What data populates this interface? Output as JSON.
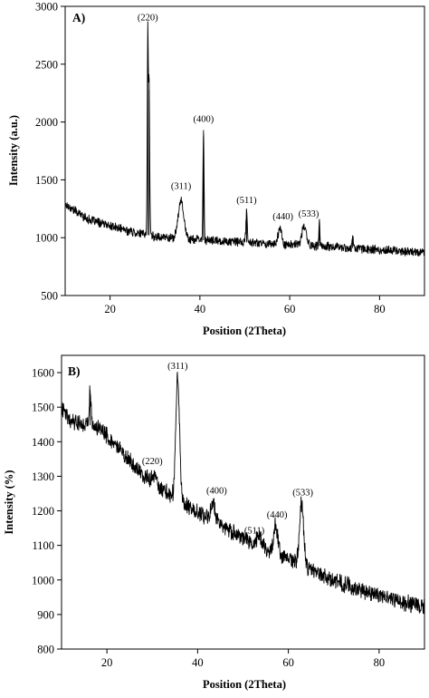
{
  "chart_data": [
    {
      "type": "line",
      "panel_label": "A)",
      "xlabel": "Position (2Theta)",
      "ylabel": "Intensity (a.u.)",
      "xlim": [
        10,
        90
      ],
      "ylim": [
        500,
        3000
      ],
      "xticks": [
        20,
        40,
        60,
        80
      ],
      "yticks": [
        500,
        1000,
        1500,
        2000,
        2500,
        3000
      ],
      "grid": false,
      "baseline": [
        [
          10,
          1290
        ],
        [
          15,
          1160
        ],
        [
          20,
          1100
        ],
        [
          25,
          1050
        ],
        [
          30,
          1010
        ],
        [
          40,
          980
        ],
        [
          50,
          960
        ],
        [
          60,
          940
        ],
        [
          70,
          920
        ],
        [
          80,
          895
        ],
        [
          90,
          875
        ]
      ],
      "noise_amplitude": 35,
      "peaks": [
        {
          "x": 28.4,
          "y": 2790,
          "width": 0.12
        },
        {
          "x": 28.7,
          "y": 2280,
          "width": 0.12
        },
        {
          "x": 35.8,
          "y": 1330,
          "width": 0.6
        },
        {
          "x": 40.8,
          "y": 1930,
          "width": 0.12
        },
        {
          "x": 50.4,
          "y": 1230,
          "width": 0.15
        },
        {
          "x": 57.8,
          "y": 1080,
          "width": 0.4
        },
        {
          "x": 63.2,
          "y": 1100,
          "width": 0.5
        },
        {
          "x": 66.6,
          "y": 1120,
          "width": 0.12
        },
        {
          "x": 74.0,
          "y": 1020,
          "width": 0.12
        }
      ],
      "annotations": [
        {
          "text": "(220)",
          "x": 28.4,
          "y": 2880
        },
        {
          "text": "(400)",
          "x": 40.8,
          "y": 2000
        },
        {
          "text": "(311)",
          "x": 35.8,
          "y": 1420
        },
        {
          "text": "(511)",
          "x": 50.4,
          "y": 1300
        },
        {
          "text": "(440)",
          "x": 58.5,
          "y": 1160
        },
        {
          "text": "(533)",
          "x": 64.2,
          "y": 1180
        }
      ]
    },
    {
      "type": "line",
      "panel_label": "B)",
      "xlabel": "Position (2Theta)",
      "ylabel": "Intensity (%)",
      "xlim": [
        10,
        90
      ],
      "ylim": [
        800,
        1650
      ],
      "xticks": [
        20,
        40,
        60,
        80
      ],
      "yticks": [
        800,
        900,
        1000,
        1100,
        1200,
        1300,
        1400,
        1500,
        1600
      ],
      "grid": false,
      "baseline": [
        [
          10,
          1500
        ],
        [
          12,
          1465
        ],
        [
          15,
          1450
        ],
        [
          18,
          1445
        ],
        [
          20,
          1415
        ],
        [
          25,
          1345
        ],
        [
          30,
          1275
        ],
        [
          35,
          1240
        ],
        [
          40,
          1195
        ],
        [
          45,
          1160
        ],
        [
          50,
          1120
        ],
        [
          55,
          1090
        ],
        [
          60,
          1060
        ],
        [
          65,
          1030
        ],
        [
          70,
          1000
        ],
        [
          75,
          975
        ],
        [
          80,
          955
        ],
        [
          85,
          935
        ],
        [
          90,
          920
        ]
      ],
      "noise_amplitude": 22,
      "peaks": [
        {
          "x": 16.3,
          "y": 1550,
          "width": 0.2
        },
        {
          "x": 30.2,
          "y": 1305,
          "width": 0.6
        },
        {
          "x": 35.6,
          "y": 1590,
          "width": 0.4
        },
        {
          "x": 43.4,
          "y": 1225,
          "width": 0.5
        },
        {
          "x": 53.5,
          "y": 1130,
          "width": 0.5
        },
        {
          "x": 57.2,
          "y": 1160,
          "width": 0.45
        },
        {
          "x": 62.9,
          "y": 1225,
          "width": 0.45
        }
      ],
      "annotations": [
        {
          "text": "(311)",
          "x": 35.6,
          "y": 1610
        },
        {
          "text": "(220)",
          "x": 30.0,
          "y": 1335
        },
        {
          "text": "(400)",
          "x": 44.2,
          "y": 1250
        },
        {
          "text": "(511)",
          "x": 52.5,
          "y": 1135
        },
        {
          "text": "(440)",
          "x": 57.5,
          "y": 1180
        },
        {
          "text": "(533)",
          "x": 63.2,
          "y": 1245
        }
      ]
    }
  ]
}
